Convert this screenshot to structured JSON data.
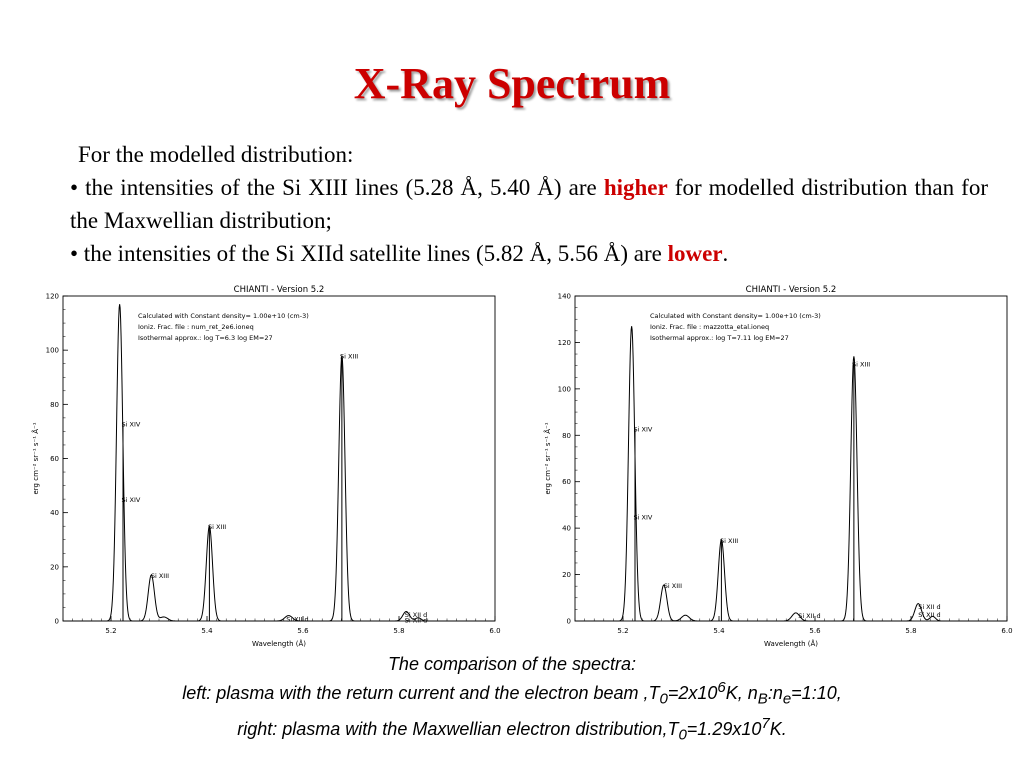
{
  "title": "X-Ray Spectrum",
  "bullets": {
    "intro": "For the modelled distribution:",
    "b1_pre": "• the intensities of the Si XIII lines (5.28 Å, 5.40 Å) are ",
    "b1_hl": "higher",
    "b1_post": " for modelled distribution than for the Maxwellian distribution;",
    "b2_pre": "• the intensities of the Si XIId satellite lines (5.82 Å, 5.56 Å) are ",
    "b2_hl": "lower",
    "b2_post": "."
  },
  "caption": {
    "line1": "The comparison of the spectra:",
    "l2a": "left: plasma with the return current and the electron beam ,T",
    "l2b": "0",
    "l2c": "=2x10",
    "l2d": "6",
    "l2e": "K, n",
    "l2f": "B",
    "l2g": ":n",
    "l2h": "e",
    "l2i": "=1:10,",
    "l3a": "right: plasma with the Maxwellian electron distribution,T",
    "l3b": "0",
    "l3c": "=1.29x10",
    "l3d": "7",
    "l3e": "K."
  },
  "colors": {
    "title": "#cc0000",
    "highlight": "#cc0000",
    "plot": "#000000"
  },
  "chart_data": [
    {
      "type": "line",
      "title": "CHIANTI - Version 5.2",
      "xlabel": "Wavelength (Å)",
      "ylabel": "erg cm⁻² sr⁻¹ s⁻¹ Å⁻¹",
      "xlim": [
        5.1,
        6.0
      ],
      "ylim": [
        0,
        120
      ],
      "xticks": [
        5.2,
        5.4,
        5.6,
        5.8,
        6.0
      ],
      "yticks": [
        0,
        20,
        40,
        60,
        80,
        100,
        120
      ],
      "info_lines": [
        "Calculated with Constant density=  1.00e+10 (cm-3)",
        "Ioniz. Frac. file : num_ret_2e6.ioneq",
        "Isothermal approx.: log T=6.3 log EM=27"
      ],
      "peaks": [
        {
          "x": 5.218,
          "y": 117,
          "w": 0.0065
        },
        {
          "x": 5.284,
          "y": 17,
          "w": 0.0065
        },
        {
          "x": 5.31,
          "y": 1.5,
          "w": 0.008
        },
        {
          "x": 5.405,
          "y": 35,
          "w": 0.0065
        },
        {
          "x": 5.57,
          "y": 2,
          "w": 0.008
        },
        {
          "x": 5.681,
          "y": 98,
          "w": 0.0065
        },
        {
          "x": 5.815,
          "y": 3.5,
          "w": 0.007
        },
        {
          "x": 5.84,
          "y": 1.2,
          "w": 0.006
        }
      ],
      "sticks": [
        {
          "x": 5.225,
          "y": 73
        },
        {
          "x": 5.225,
          "y": 45
        },
        {
          "x": 5.405,
          "y": 35
        },
        {
          "x": 5.681,
          "y": 98
        }
      ],
      "line_labels": [
        {
          "text": "Si XIV",
          "x": 5.222,
          "y": 73
        },
        {
          "text": "Si XIV",
          "x": 5.222,
          "y": 45
        },
        {
          "text": "Si XIII",
          "x": 5.283,
          "y": 17
        },
        {
          "text": "Si XIII",
          "x": 5.402,
          "y": 35
        },
        {
          "text": "Si XII d",
          "x": 5.565,
          "y": 1
        },
        {
          "text": "Si XIII",
          "x": 5.677,
          "y": 98
        },
        {
          "text": "Si XII d",
          "x": 5.812,
          "y": 2.6
        },
        {
          "text": "Si XII d",
          "x": 5.812,
          "y": 0.6
        }
      ]
    },
    {
      "type": "line",
      "title": "CHIANTI - Version 5.2",
      "xlabel": "Wavelength (Å)",
      "ylabel": "erg cm⁻² sr⁻¹ s⁻¹ Å⁻¹",
      "xlim": [
        5.1,
        6.0
      ],
      "ylim": [
        0,
        140
      ],
      "xticks": [
        5.2,
        5.4,
        5.6,
        5.8,
        6.0
      ],
      "yticks": [
        0,
        20,
        40,
        60,
        80,
        100,
        120,
        140
      ],
      "info_lines": [
        "Calculated with Constant density=  1.00e+10 (cm-3)",
        "Ioniz. Frac. file : mazzotta_etal.ioneq",
        "Isothermal approx.: log T=7.11 log EM=27"
      ],
      "peaks": [
        {
          "x": 5.218,
          "y": 127,
          "w": 0.0065
        },
        {
          "x": 5.285,
          "y": 15.5,
          "w": 0.0065
        },
        {
          "x": 5.33,
          "y": 2.5,
          "w": 0.008
        },
        {
          "x": 5.405,
          "y": 35,
          "w": 0.0065
        },
        {
          "x": 5.56,
          "y": 3.5,
          "w": 0.008
        },
        {
          "x": 5.681,
          "y": 114,
          "w": 0.0065
        },
        {
          "x": 5.815,
          "y": 7.5,
          "w": 0.007
        },
        {
          "x": 5.845,
          "y": 2,
          "w": 0.006
        }
      ],
      "sticks": [
        {
          "x": 5.225,
          "y": 83
        },
        {
          "x": 5.225,
          "y": 45
        },
        {
          "x": 5.405,
          "y": 35
        },
        {
          "x": 5.681,
          "y": 111
        }
      ],
      "line_labels": [
        {
          "text": "Si XIV",
          "x": 5.222,
          "y": 83
        },
        {
          "text": "Si XIV",
          "x": 5.222,
          "y": 45
        },
        {
          "text": "Si XIII",
          "x": 5.285,
          "y": 15.5
        },
        {
          "text": "Si XIII",
          "x": 5.402,
          "y": 35
        },
        {
          "text": "Si XII d",
          "x": 5.565,
          "y": 2.5
        },
        {
          "text": "Si XIII",
          "x": 5.677,
          "y": 111
        },
        {
          "text": "Si XII d",
          "x": 5.815,
          "y": 6.5
        },
        {
          "text": "Si XII d",
          "x": 5.815,
          "y": 3
        }
      ]
    }
  ]
}
